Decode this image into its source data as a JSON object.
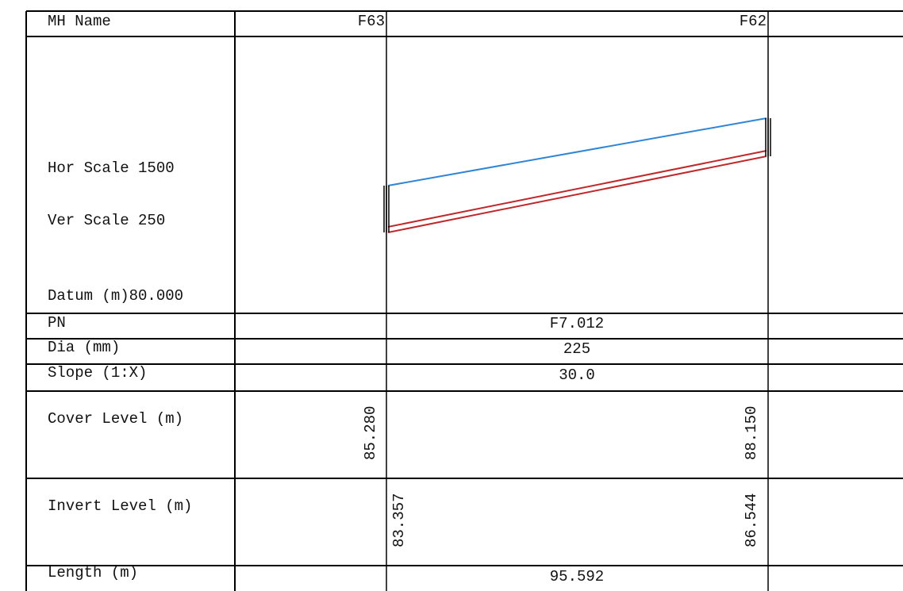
{
  "labels": {
    "mh_name": "MH Name",
    "hor_scale": "Hor Scale 1500",
    "ver_scale": "Ver Scale 250",
    "datum": "Datum (m)80.000",
    "pn": "PN",
    "dia": "Dia (mm)",
    "slope": "Slope (1:X)",
    "cover": "Cover Level (m)",
    "invert": "Invert Level (m)",
    "length": "Length (m)"
  },
  "manholes": [
    {
      "name": "F63",
      "cover_level": "85.280",
      "invert_level": "83.357"
    },
    {
      "name": "F62",
      "cover_level": "88.150",
      "invert_level": "86.544"
    }
  ],
  "pipe": {
    "pn": "F7.012",
    "dia": "225",
    "slope": "30.0",
    "length": "95.592"
  },
  "colors": {
    "cover_line": "#2f86d6",
    "pipe_line": "#c0282b",
    "grid": "#000000"
  }
}
